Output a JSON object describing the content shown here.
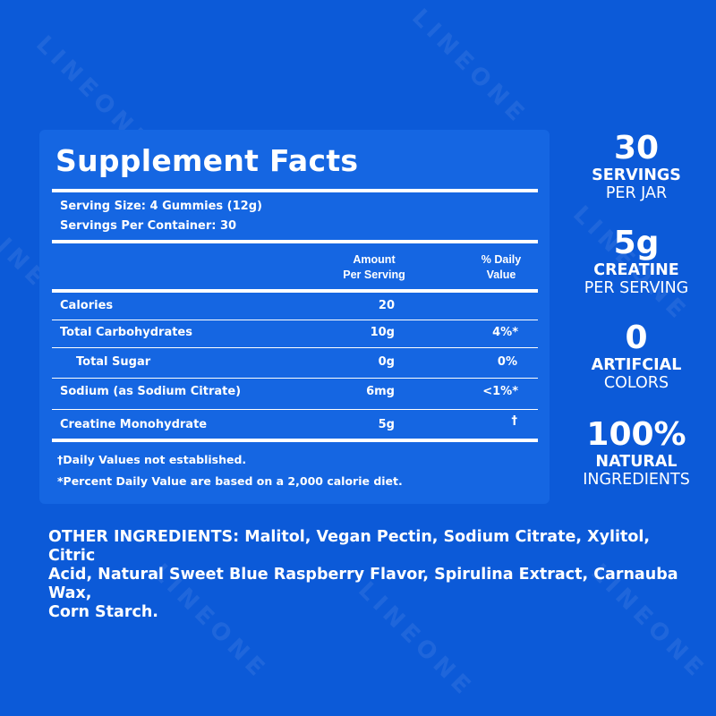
{
  "watermark_text": "LINEONE",
  "facts": {
    "title": "Supplement Facts",
    "serving_size": "Serving Size: 4 Gummies (12g)",
    "servings_per_container": "Servings Per Container: 30",
    "col_amount_line1": "Amount",
    "col_amount_line2": "Per Serving",
    "col_dv_line1": "% Daily",
    "col_dv_line2": "Value",
    "rows": [
      {
        "name": "Calories",
        "amount": "20",
        "dv": ""
      },
      {
        "name": "Total Carbohydrates",
        "amount": "10g",
        "dv": "4%*"
      },
      {
        "name": "Total Sugar",
        "amount": "0g",
        "dv": "0%"
      },
      {
        "name": "Sodium (as Sodium Citrate)",
        "amount": "6mg",
        "dv": "<1%*"
      },
      {
        "name": "Creatine Monohydrate",
        "amount": "5g",
        "dv": "†"
      }
    ],
    "footnote_1": "†Daily Values not established.",
    "footnote_2": "*Percent Daily Value are based on a 2,000 calorie diet."
  },
  "stats": [
    {
      "big": "30",
      "bold": "SERVINGS",
      "reg": "PER JAR"
    },
    {
      "big": "5g",
      "bold": "CREATINE",
      "reg": "PER SERVING"
    },
    {
      "big": "0",
      "bold": "ARTIFCIAL",
      "reg": "COLORS"
    },
    {
      "big": "100%",
      "bold": "NATURAL",
      "reg": "INGREDIENTS"
    }
  ],
  "ingredients": {
    "line1": "OTHER INGREDIENTS: Malitol, Vegan Pectin, Sodium Citrate, Xylitol, Citric",
    "line2": "Acid, Natural Sweet Blue Raspberry Flavor, Spirulina Extract, Carnauba Wax,",
    "line3": "Corn Starch."
  },
  "colors": {
    "background": "#0c5ad8",
    "panel": "#1566e2",
    "text": "#ffffff"
  }
}
